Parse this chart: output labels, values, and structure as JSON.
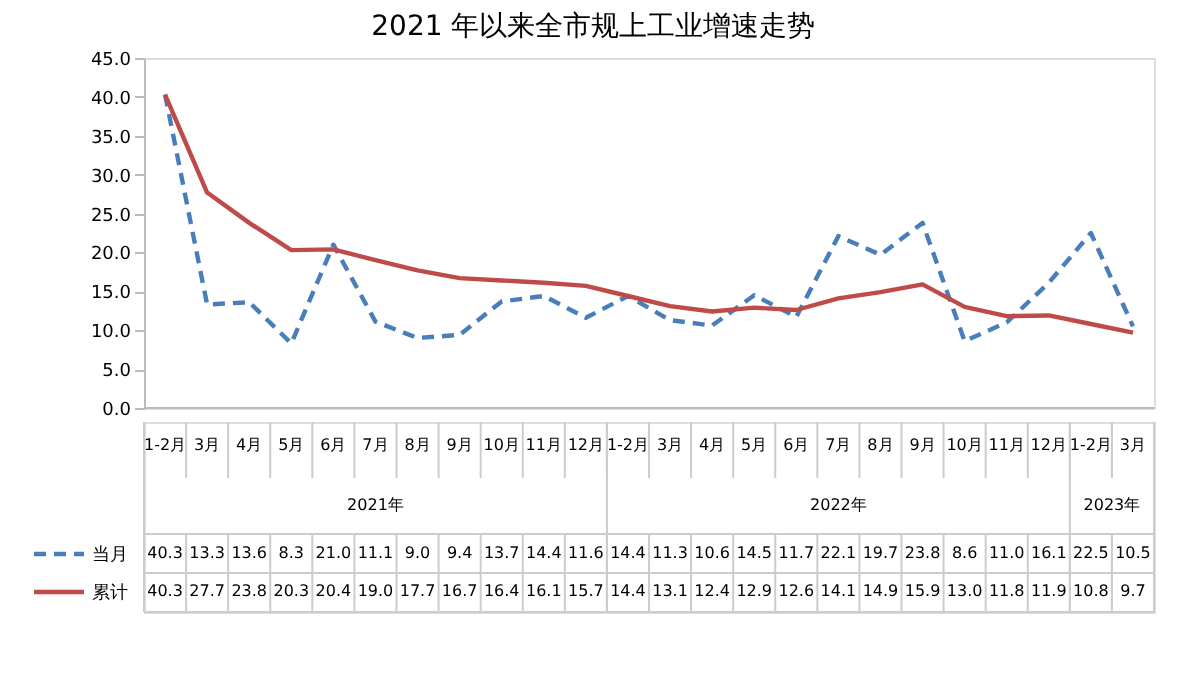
{
  "chart_data": {
    "type": "line",
    "title": "2021 年以来全市规上工业增速走势",
    "categories": [
      "1-2月",
      "3月",
      "4月",
      "5月",
      "6月",
      "7月",
      "8月",
      "9月",
      "10月",
      "11月",
      "12月",
      "1-2月",
      "3月",
      "4月",
      "5月",
      "6月",
      "7月",
      "8月",
      "9月",
      "10月",
      "11月",
      "12月",
      "1-2月",
      "3月"
    ],
    "series": [
      {
        "name": "当月",
        "color": "#4a7ebb",
        "line_style": "dashed",
        "values": [
          40.3,
          13.3,
          13.6,
          8.3,
          21.0,
          11.1,
          9.0,
          9.4,
          13.7,
          14.4,
          11.6,
          14.4,
          11.3,
          10.6,
          14.5,
          11.7,
          22.1,
          19.7,
          23.8,
          8.6,
          11.0,
          16.1,
          22.5,
          10.5
        ],
        "value_labels": [
          "40.3",
          "13.3",
          "13.6",
          "8.3",
          "21.0",
          "11.1",
          "9.0",
          "9.4",
          "13.7",
          "14.4",
          "11.6",
          "14.4",
          "11.3",
          "10.6",
          "14.5",
          "11.7",
          "22.1",
          "19.7",
          "23.8",
          "8.6",
          "11.0",
          "16.1",
          "22.5",
          "10.5"
        ]
      },
      {
        "name": "累计",
        "color": "#be4b48",
        "line_style": "solid",
        "values": [
          40.3,
          27.7,
          23.8,
          20.3,
          20.4,
          19.0,
          17.7,
          16.7,
          16.4,
          16.1,
          15.7,
          14.4,
          13.1,
          12.4,
          12.9,
          12.6,
          14.1,
          14.9,
          15.9,
          13.0,
          11.8,
          11.9,
          10.8,
          9.7
        ],
        "value_labels": [
          "40.3",
          "27.7",
          "23.8",
          "20.3",
          "20.4",
          "19.0",
          "17.7",
          "16.7",
          "16.4",
          "16.1",
          "15.7",
          "14.4",
          "13.1",
          "12.4",
          "12.9",
          "12.6",
          "14.1",
          "14.9",
          "15.9",
          "13.0",
          "11.8",
          "11.9",
          "10.8",
          "9.7"
        ]
      }
    ],
    "annotations": [
      "2021年",
      "2022年",
      "2023年"
    ],
    "ylim": [
      0,
      45
    ],
    "yticks": [
      {
        "value": 0,
        "label": "0.0"
      },
      {
        "value": 5,
        "label": "5.0"
      },
      {
        "value": 10,
        "label": "10.0"
      },
      {
        "value": 15,
        "label": "15.0"
      },
      {
        "value": 20,
        "label": "20.0"
      },
      {
        "value": 25,
        "label": "25.0"
      },
      {
        "value": 30,
        "label": "30.0"
      },
      {
        "value": 35,
        "label": "35.0"
      },
      {
        "value": 40,
        "label": "40.0"
      },
      {
        "value": 45,
        "label": "45.0"
      }
    ],
    "grid": false,
    "legend": "bottom"
  }
}
